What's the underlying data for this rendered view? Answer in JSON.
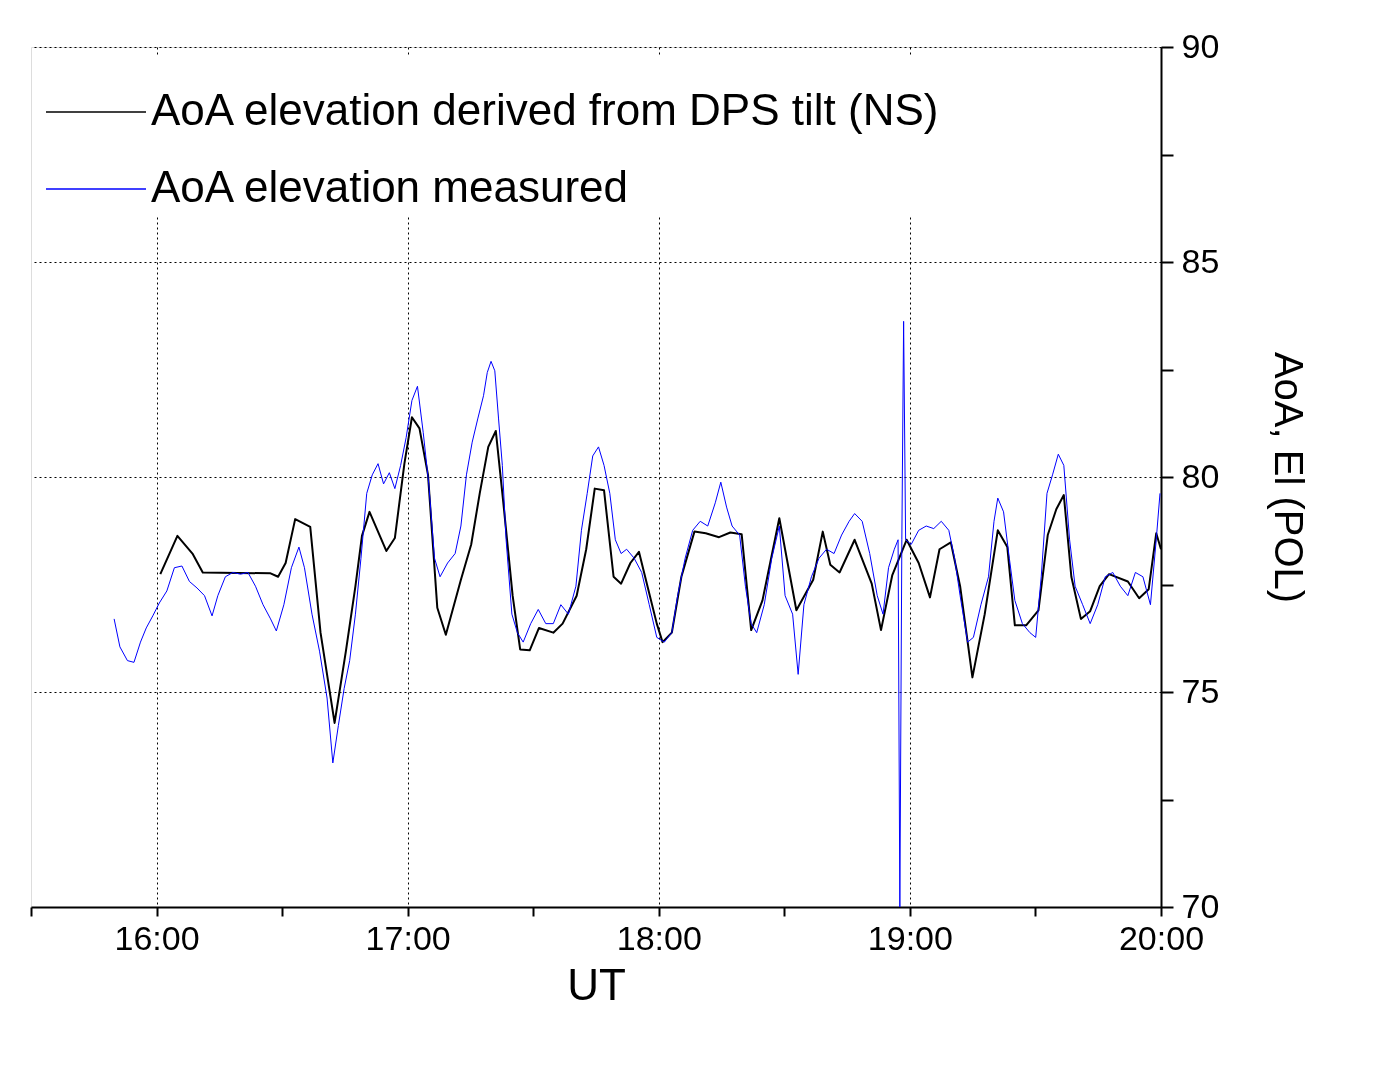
{
  "chart_data": {
    "type": "line",
    "xlabel": "UT",
    "y2label": "AoA, El (POL)",
    "xlim": [
      15.5,
      20
    ],
    "xticks": [
      {
        "value": 15.5,
        "label": null
      },
      {
        "value": 16,
        "label": "16:00"
      },
      {
        "value": 16.5,
        "label": null
      },
      {
        "value": 17,
        "label": "17:00"
      },
      {
        "value": 17.5,
        "label": null
      },
      {
        "value": 18,
        "label": "18:00"
      },
      {
        "value": 18.5,
        "label": null
      },
      {
        "value": 19,
        "label": "19:00"
      },
      {
        "value": 19.5,
        "label": null
      },
      {
        "value": 20,
        "label": "20:00"
      }
    ],
    "y2lim": [
      70,
      90
    ],
    "y2ticks": [
      70,
      {
        "value": 72.5,
        "label": null
      },
      75,
      {
        "value": 77.5,
        "label": null
      },
      80,
      {
        "value": 82.5,
        "label": null
      },
      85,
      {
        "value": 87.5,
        "label": null
      },
      90
    ],
    "grid": true,
    "legend": "top left",
    "marker": "none",
    "line_style": "solid",
    "series": [
      {
        "name": "AoA elevation derived from DPS tilt (NS)",
        "color": "#000000",
        "axis": "y2",
        "x": [
          16.015,
          16.083,
          16.143,
          16.184,
          16.454,
          16.484,
          16.514,
          16.552,
          16.612,
          16.653,
          16.709,
          16.754,
          16.792,
          16.818,
          16.848,
          16.915,
          16.949,
          16.987,
          17.017,
          17.047,
          17.081,
          17.118,
          17.152,
          17.212,
          17.253,
          17.287,
          17.321,
          17.351,
          17.381,
          17.418,
          17.448,
          17.486,
          17.523,
          17.58,
          17.617,
          17.673,
          17.711,
          17.745,
          17.782,
          17.82,
          17.85,
          17.887,
          17.921,
          17.955,
          17.992,
          18.015,
          18.052,
          18.09,
          18.142,
          18.187,
          18.24,
          18.285,
          18.33,
          18.368,
          18.413,
          18.48,
          18.548,
          18.615,
          18.653,
          18.683,
          18.72,
          18.78,
          18.848,
          18.885,
          18.93,
          18.987,
          19.035,
          19.08,
          19.118,
          19.163,
          19.2,
          19.249,
          19.298,
          19.35,
          19.388,
          19.418,
          19.463,
          19.512,
          19.549,
          19.583,
          19.613,
          19.643,
          19.681,
          19.718,
          19.756,
          19.793,
          19.868,
          19.913,
          19.951,
          19.981,
          20.0
        ],
        "values": [
          77.74,
          78.63,
          78.22,
          77.78,
          77.76,
          77.68,
          78.0,
          79.02,
          78.84,
          76.38,
          74.28,
          75.95,
          77.46,
          78.63,
          79.19,
          78.28,
          78.58,
          80.31,
          81.39,
          81.13,
          80.05,
          76.96,
          76.33,
          77.61,
          78.43,
          79.62,
          80.7,
          81.07,
          79.4,
          77.24,
          75.99,
          75.97,
          76.49,
          76.38,
          76.59,
          77.24,
          78.32,
          79.73,
          79.69,
          77.68,
          77.52,
          78.0,
          78.26,
          77.46,
          76.59,
          76.16,
          76.38,
          77.68,
          78.73,
          78.69,
          78.6,
          78.71,
          78.67,
          76.44,
          77.13,
          79.04,
          76.9,
          77.61,
          78.73,
          77.96,
          77.78,
          78.54,
          77.52,
          76.44,
          77.72,
          78.54,
          78.0,
          77.2,
          78.32,
          78.48,
          77.46,
          75.34,
          76.81,
          78.76,
          78.37,
          76.55,
          76.55,
          76.9,
          78.65,
          79.25,
          79.58,
          77.68,
          76.7,
          76.88,
          77.46,
          77.74,
          77.57,
          77.18,
          77.39,
          78.69,
          78.32
        ]
      },
      {
        "name": "AoA elevation measured",
        "color": "#0000ff",
        "axis": "y2",
        "x": [
          15.831,
          15.854,
          15.884,
          15.91,
          15.936,
          15.959,
          15.985,
          16.011,
          16.041,
          16.071,
          16.101,
          16.131,
          16.161,
          16.191,
          16.221,
          16.244,
          16.274,
          16.304,
          16.334,
          16.364,
          16.394,
          16.424,
          16.454,
          16.477,
          16.507,
          16.537,
          16.567,
          16.589,
          16.619,
          16.649,
          16.679,
          16.702,
          16.724,
          16.747,
          16.769,
          16.792,
          16.814,
          16.837,
          16.859,
          16.882,
          16.904,
          16.927,
          16.949,
          16.972,
          16.994,
          17.017,
          17.039,
          17.062,
          17.084,
          17.107,
          17.129,
          17.159,
          17.189,
          17.212,
          17.234,
          17.257,
          17.279,
          17.302,
          17.317,
          17.332,
          17.347,
          17.362,
          17.377,
          17.392,
          17.415,
          17.437,
          17.46,
          17.49,
          17.52,
          17.55,
          17.58,
          17.61,
          17.64,
          17.67,
          17.692,
          17.715,
          17.737,
          17.76,
          17.782,
          17.805,
          17.827,
          17.85,
          17.872,
          17.902,
          17.932,
          17.962,
          17.992,
          18.022,
          18.052,
          18.075,
          18.105,
          18.135,
          18.165,
          18.195,
          18.225,
          18.247,
          18.27,
          18.292,
          18.322,
          18.345,
          18.368,
          18.39,
          18.42,
          18.45,
          18.48,
          18.503,
          18.533,
          18.555,
          18.578,
          18.608,
          18.638,
          18.668,
          18.698,
          18.728,
          18.758,
          18.78,
          18.81,
          18.84,
          18.87,
          18.893,
          18.915,
          18.938,
          18.953,
          18.96,
          18.968,
          18.975,
          18.983,
          19.005,
          19.035,
          19.065,
          19.095,
          19.125,
          19.155,
          19.178,
          19.2,
          19.23,
          19.253,
          19.283,
          19.313,
          19.335,
          19.35,
          19.373,
          19.396,
          19.418,
          19.448,
          19.478,
          19.501,
          19.523,
          19.546,
          19.568,
          19.591,
          19.613,
          19.636,
          19.658,
          19.688,
          19.718,
          19.748,
          19.778,
          19.808,
          19.838,
          19.868,
          19.898,
          19.928,
          19.958,
          19.981,
          19.996
        ],
        "values": [
          76.7,
          76.05,
          75.73,
          75.69,
          76.16,
          76.49,
          76.77,
          77.07,
          77.35,
          77.89,
          77.93,
          77.57,
          77.42,
          77.24,
          76.77,
          77.24,
          77.68,
          77.78,
          77.74,
          77.78,
          77.46,
          77.03,
          76.7,
          76.42,
          77.03,
          77.89,
          78.37,
          77.89,
          76.81,
          75.95,
          74.86,
          73.35,
          74.22,
          75.08,
          75.73,
          76.81,
          78.11,
          79.62,
          80.05,
          80.31,
          79.84,
          80.1,
          79.73,
          80.27,
          80.92,
          81.78,
          82.11,
          81.03,
          79.84,
          78.11,
          77.68,
          78.0,
          78.22,
          78.86,
          80.05,
          80.81,
          81.35,
          81.89,
          82.43,
          82.69,
          82.47,
          81.35,
          80.27,
          78.54,
          76.81,
          76.38,
          76.16,
          76.59,
          76.92,
          76.59,
          76.59,
          77.03,
          76.81,
          77.46,
          78.76,
          79.62,
          80.49,
          80.7,
          80.27,
          79.62,
          78.54,
          78.22,
          78.32,
          78.11,
          77.78,
          77.03,
          76.27,
          76.16,
          76.38,
          77.24,
          78.11,
          78.76,
          78.97,
          78.86,
          79.4,
          79.88,
          79.3,
          78.86,
          78.65,
          77.46,
          76.59,
          76.38,
          77.03,
          78.11,
          78.86,
          77.24,
          76.81,
          75.41,
          77.03,
          77.68,
          78.11,
          78.32,
          78.22,
          78.65,
          78.97,
          79.15,
          78.97,
          78.22,
          77.24,
          76.81,
          77.89,
          78.32,
          78.54,
          70.0,
          78.54,
          83.62,
          78.54,
          78.43,
          78.76,
          78.86,
          78.8,
          78.97,
          78.76,
          78.11,
          77.24,
          76.16,
          76.27,
          77.03,
          77.68,
          78.97,
          79.51,
          79.19,
          78.11,
          77.13,
          76.59,
          76.38,
          76.27,
          77.68,
          79.62,
          80.05,
          80.53,
          80.27,
          78.54,
          77.46,
          77.03,
          76.59,
          77.03,
          77.68,
          77.78,
          77.46,
          77.24,
          77.78,
          77.68,
          77.03,
          78.54,
          79.62
        ]
      }
    ]
  }
}
